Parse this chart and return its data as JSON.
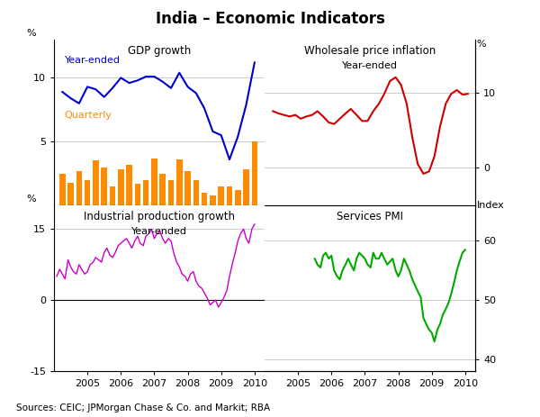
{
  "title": "India – Economic Indicators",
  "source": "Sources: CEIC; JPMorgan Chase & Co. and Markit; RBA",
  "gdp_ye_x": [
    2004.25,
    2004.5,
    2004.75,
    2005.0,
    2005.25,
    2005.5,
    2005.75,
    2006.0,
    2006.25,
    2006.5,
    2006.75,
    2007.0,
    2007.25,
    2007.5,
    2007.75,
    2008.0,
    2008.25,
    2008.5,
    2008.75,
    2009.0,
    2009.25,
    2009.5,
    2009.75,
    2010.0
  ],
  "gdp_ye_y": [
    8.9,
    8.4,
    8.0,
    9.3,
    9.1,
    8.5,
    9.2,
    10.0,
    9.6,
    9.8,
    10.1,
    10.1,
    9.7,
    9.2,
    10.4,
    9.3,
    8.8,
    7.6,
    5.8,
    5.5,
    3.6,
    5.4,
    7.9,
    11.2
  ],
  "gdp_ye_color": "#0000CC",
  "gdp_q_x": [
    2004.25,
    2004.5,
    2004.75,
    2005.0,
    2005.25,
    2005.5,
    2005.75,
    2006.0,
    2006.25,
    2006.5,
    2006.75,
    2007.0,
    2007.25,
    2007.5,
    2007.75,
    2008.0,
    2008.25,
    2008.5,
    2008.75,
    2009.0,
    2009.25,
    2009.5,
    2009.75,
    2010.0
  ],
  "gdp_q_y": [
    2.5,
    1.8,
    2.7,
    2.0,
    3.5,
    3.0,
    1.5,
    2.8,
    3.2,
    1.7,
    2.0,
    3.7,
    2.5,
    2.0,
    3.6,
    2.7,
    2.0,
    1.0,
    0.8,
    1.5,
    1.5,
    1.2,
    2.8,
    5.0
  ],
  "gdp_q_color": "#FF8C00",
  "wpi_x": [
    2004.25,
    2004.42,
    2004.58,
    2004.75,
    2004.92,
    2005.08,
    2005.25,
    2005.42,
    2005.58,
    2005.75,
    2005.92,
    2006.08,
    2006.25,
    2006.42,
    2006.58,
    2006.75,
    2006.92,
    2007.08,
    2007.25,
    2007.42,
    2007.58,
    2007.75,
    2007.92,
    2008.08,
    2008.25,
    2008.42,
    2008.58,
    2008.75,
    2008.92,
    2009.08,
    2009.25,
    2009.42,
    2009.58,
    2009.75,
    2009.92,
    2010.08
  ],
  "wpi_y": [
    7.5,
    7.2,
    7.0,
    6.8,
    7.0,
    6.5,
    6.8,
    7.0,
    7.5,
    6.8,
    6.0,
    5.8,
    6.5,
    7.2,
    7.8,
    7.0,
    6.2,
    6.2,
    7.5,
    8.5,
    9.8,
    11.5,
    12.0,
    11.0,
    8.5,
    4.0,
    0.5,
    -0.8,
    -0.5,
    1.5,
    5.5,
    8.5,
    9.8,
    10.3,
    9.7,
    9.8
  ],
  "wpi_color": "#CC0000",
  "iip_x": [
    2004.08,
    2004.17,
    2004.25,
    2004.33,
    2004.42,
    2004.5,
    2004.58,
    2004.67,
    2004.75,
    2004.83,
    2004.92,
    2005.0,
    2005.08,
    2005.17,
    2005.25,
    2005.33,
    2005.42,
    2005.5,
    2005.58,
    2005.67,
    2005.75,
    2005.83,
    2005.92,
    2006.0,
    2006.08,
    2006.17,
    2006.25,
    2006.33,
    2006.42,
    2006.5,
    2006.58,
    2006.67,
    2006.75,
    2006.83,
    2006.92,
    2007.0,
    2007.08,
    2007.17,
    2007.25,
    2007.33,
    2007.42,
    2007.5,
    2007.58,
    2007.67,
    2007.75,
    2007.83,
    2007.92,
    2008.0,
    2008.08,
    2008.17,
    2008.25,
    2008.33,
    2008.42,
    2008.5,
    2008.58,
    2008.67,
    2008.75,
    2008.83,
    2008.92,
    2009.0,
    2009.08,
    2009.17,
    2009.25,
    2009.33,
    2009.42,
    2009.5,
    2009.58,
    2009.67,
    2009.75,
    2009.83,
    2009.92,
    2010.0
  ],
  "iip_y": [
    5.0,
    6.5,
    5.5,
    4.5,
    8.5,
    7.0,
    6.0,
    5.5,
    7.5,
    6.5,
    5.5,
    6.0,
    7.5,
    8.0,
    9.0,
    8.5,
    8.0,
    10.0,
    11.0,
    9.5,
    9.0,
    10.0,
    11.5,
    12.0,
    12.5,
    13.0,
    12.0,
    11.0,
    12.5,
    13.5,
    12.0,
    11.5,
    13.5,
    14.0,
    15.0,
    13.0,
    14.0,
    14.5,
    13.0,
    12.0,
    13.0,
    12.5,
    10.0,
    8.0,
    7.0,
    5.5,
    5.0,
    4.0,
    5.5,
    6.0,
    4.0,
    3.0,
    2.5,
    1.5,
    0.5,
    -1.0,
    -0.5,
    0.0,
    -1.5,
    -0.5,
    0.5,
    2.0,
    5.0,
    7.5,
    10.0,
    12.5,
    14.0,
    15.0,
    13.0,
    12.0,
    15.0,
    16.0
  ],
  "iip_color": "#CC00CC",
  "pmi_x": [
    2005.5,
    2005.58,
    2005.67,
    2005.75,
    2005.83,
    2005.92,
    2006.0,
    2006.08,
    2006.17,
    2006.25,
    2006.33,
    2006.42,
    2006.5,
    2006.58,
    2006.67,
    2006.75,
    2006.83,
    2006.92,
    2007.0,
    2007.08,
    2007.17,
    2007.25,
    2007.33,
    2007.42,
    2007.5,
    2007.58,
    2007.67,
    2007.75,
    2007.83,
    2007.92,
    2008.0,
    2008.08,
    2008.17,
    2008.25,
    2008.33,
    2008.42,
    2008.5,
    2008.58,
    2008.67,
    2008.75,
    2008.83,
    2008.92,
    2009.0,
    2009.08,
    2009.17,
    2009.25,
    2009.33,
    2009.42,
    2009.5,
    2009.58,
    2009.67,
    2009.75,
    2009.83,
    2009.92,
    2010.0
  ],
  "pmi_y": [
    57.0,
    56.0,
    55.5,
    57.5,
    58.0,
    57.0,
    57.5,
    55.0,
    54.0,
    53.5,
    55.0,
    56.0,
    57.0,
    56.0,
    55.0,
    57.0,
    58.0,
    57.5,
    57.0,
    56.0,
    55.5,
    58.0,
    57.0,
    57.0,
    58.0,
    57.0,
    56.0,
    56.5,
    57.0,
    55.0,
    54.0,
    55.0,
    57.0,
    56.0,
    55.0,
    53.5,
    52.5,
    51.5,
    50.5,
    47.0,
    46.0,
    45.0,
    44.5,
    43.0,
    45.0,
    46.0,
    47.5,
    48.5,
    49.5,
    51.0,
    53.0,
    55.0,
    56.5,
    58.0,
    58.5
  ],
  "pmi_color": "#00AA00",
  "xlim": [
    2004.0,
    2010.3
  ],
  "xticks": [
    2005.0,
    2006.0,
    2007.0,
    2008.0,
    2009.0,
    2010.0
  ],
  "xtick_labels": [
    "2005",
    "2006",
    "2007",
    "2008",
    "2009",
    "2010"
  ],
  "gdp_ylim": [
    0,
    13
  ],
  "gdp_yticks": [
    5,
    10
  ],
  "gdp_ytick_labels": [
    "5",
    "10"
  ],
  "wpi_ylim": [
    -5,
    17
  ],
  "wpi_yticks": [
    0,
    10
  ],
  "wpi_ytick_labels": [
    "0",
    "10"
  ],
  "iip_ylim": [
    -15,
    20
  ],
  "iip_yticks": [
    -15,
    0,
    15
  ],
  "iip_ytick_labels": [
    "-15",
    "0",
    "15"
  ],
  "pmi_ylim": [
    38,
    66
  ],
  "pmi_yticks": [
    40,
    50,
    60
  ],
  "pmi_ytick_labels": [
    "40",
    "50",
    "60"
  ],
  "color_grid": "#CCCCCC"
}
